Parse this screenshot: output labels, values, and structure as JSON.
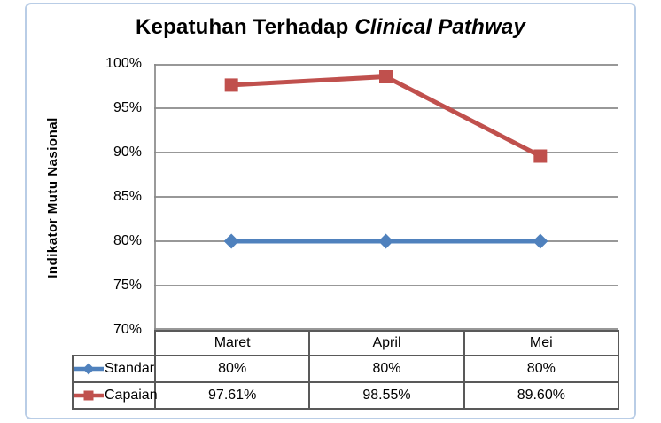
{
  "title": {
    "main": "Kepatuhan Terhadap ",
    "italic": "Clinical Pathway"
  },
  "axis": {
    "ylabel": "Indikator Mutu Nasional",
    "ticks": [
      "100%",
      "95%",
      "90%",
      "85%",
      "80%",
      "75%",
      "70%"
    ]
  },
  "table": {
    "headers": [
      "Maret",
      "April",
      "Mei"
    ],
    "rows": [
      {
        "label": "Standar",
        "values": [
          "80%",
          "80%",
          "80%"
        ]
      },
      {
        "label": "Capaian",
        "values": [
          "97.61%",
          "98.55%",
          "89.60%"
        ]
      }
    ]
  },
  "colors": {
    "standar": "#4F81BD",
    "capaian": "#C0504D",
    "gridline": "#898989",
    "axis_line": "#898989",
    "table_border": "#595959",
    "frame_border": "#B9CDE6",
    "text": "#000000"
  },
  "chart_data": {
    "type": "line",
    "categories": [
      "Maret",
      "April",
      "Mei"
    ],
    "series": [
      {
        "name": "Standar",
        "values": [
          80,
          80,
          80
        ],
        "color": "#4F81BD",
        "marker": "diamond"
      },
      {
        "name": "Capaian",
        "values": [
          97.61,
          98.55,
          89.6
        ],
        "color": "#C0504D",
        "marker": "square"
      }
    ],
    "title": "Kepatuhan Terhadap Clinical Pathway",
    "xlabel": "",
    "ylabel": "Indikator Mutu Nasional",
    "ylim": [
      70,
      100
    ],
    "ytick_step": 5,
    "ytick_format": "percent",
    "grid": true,
    "legend_position": "table-left-column"
  }
}
